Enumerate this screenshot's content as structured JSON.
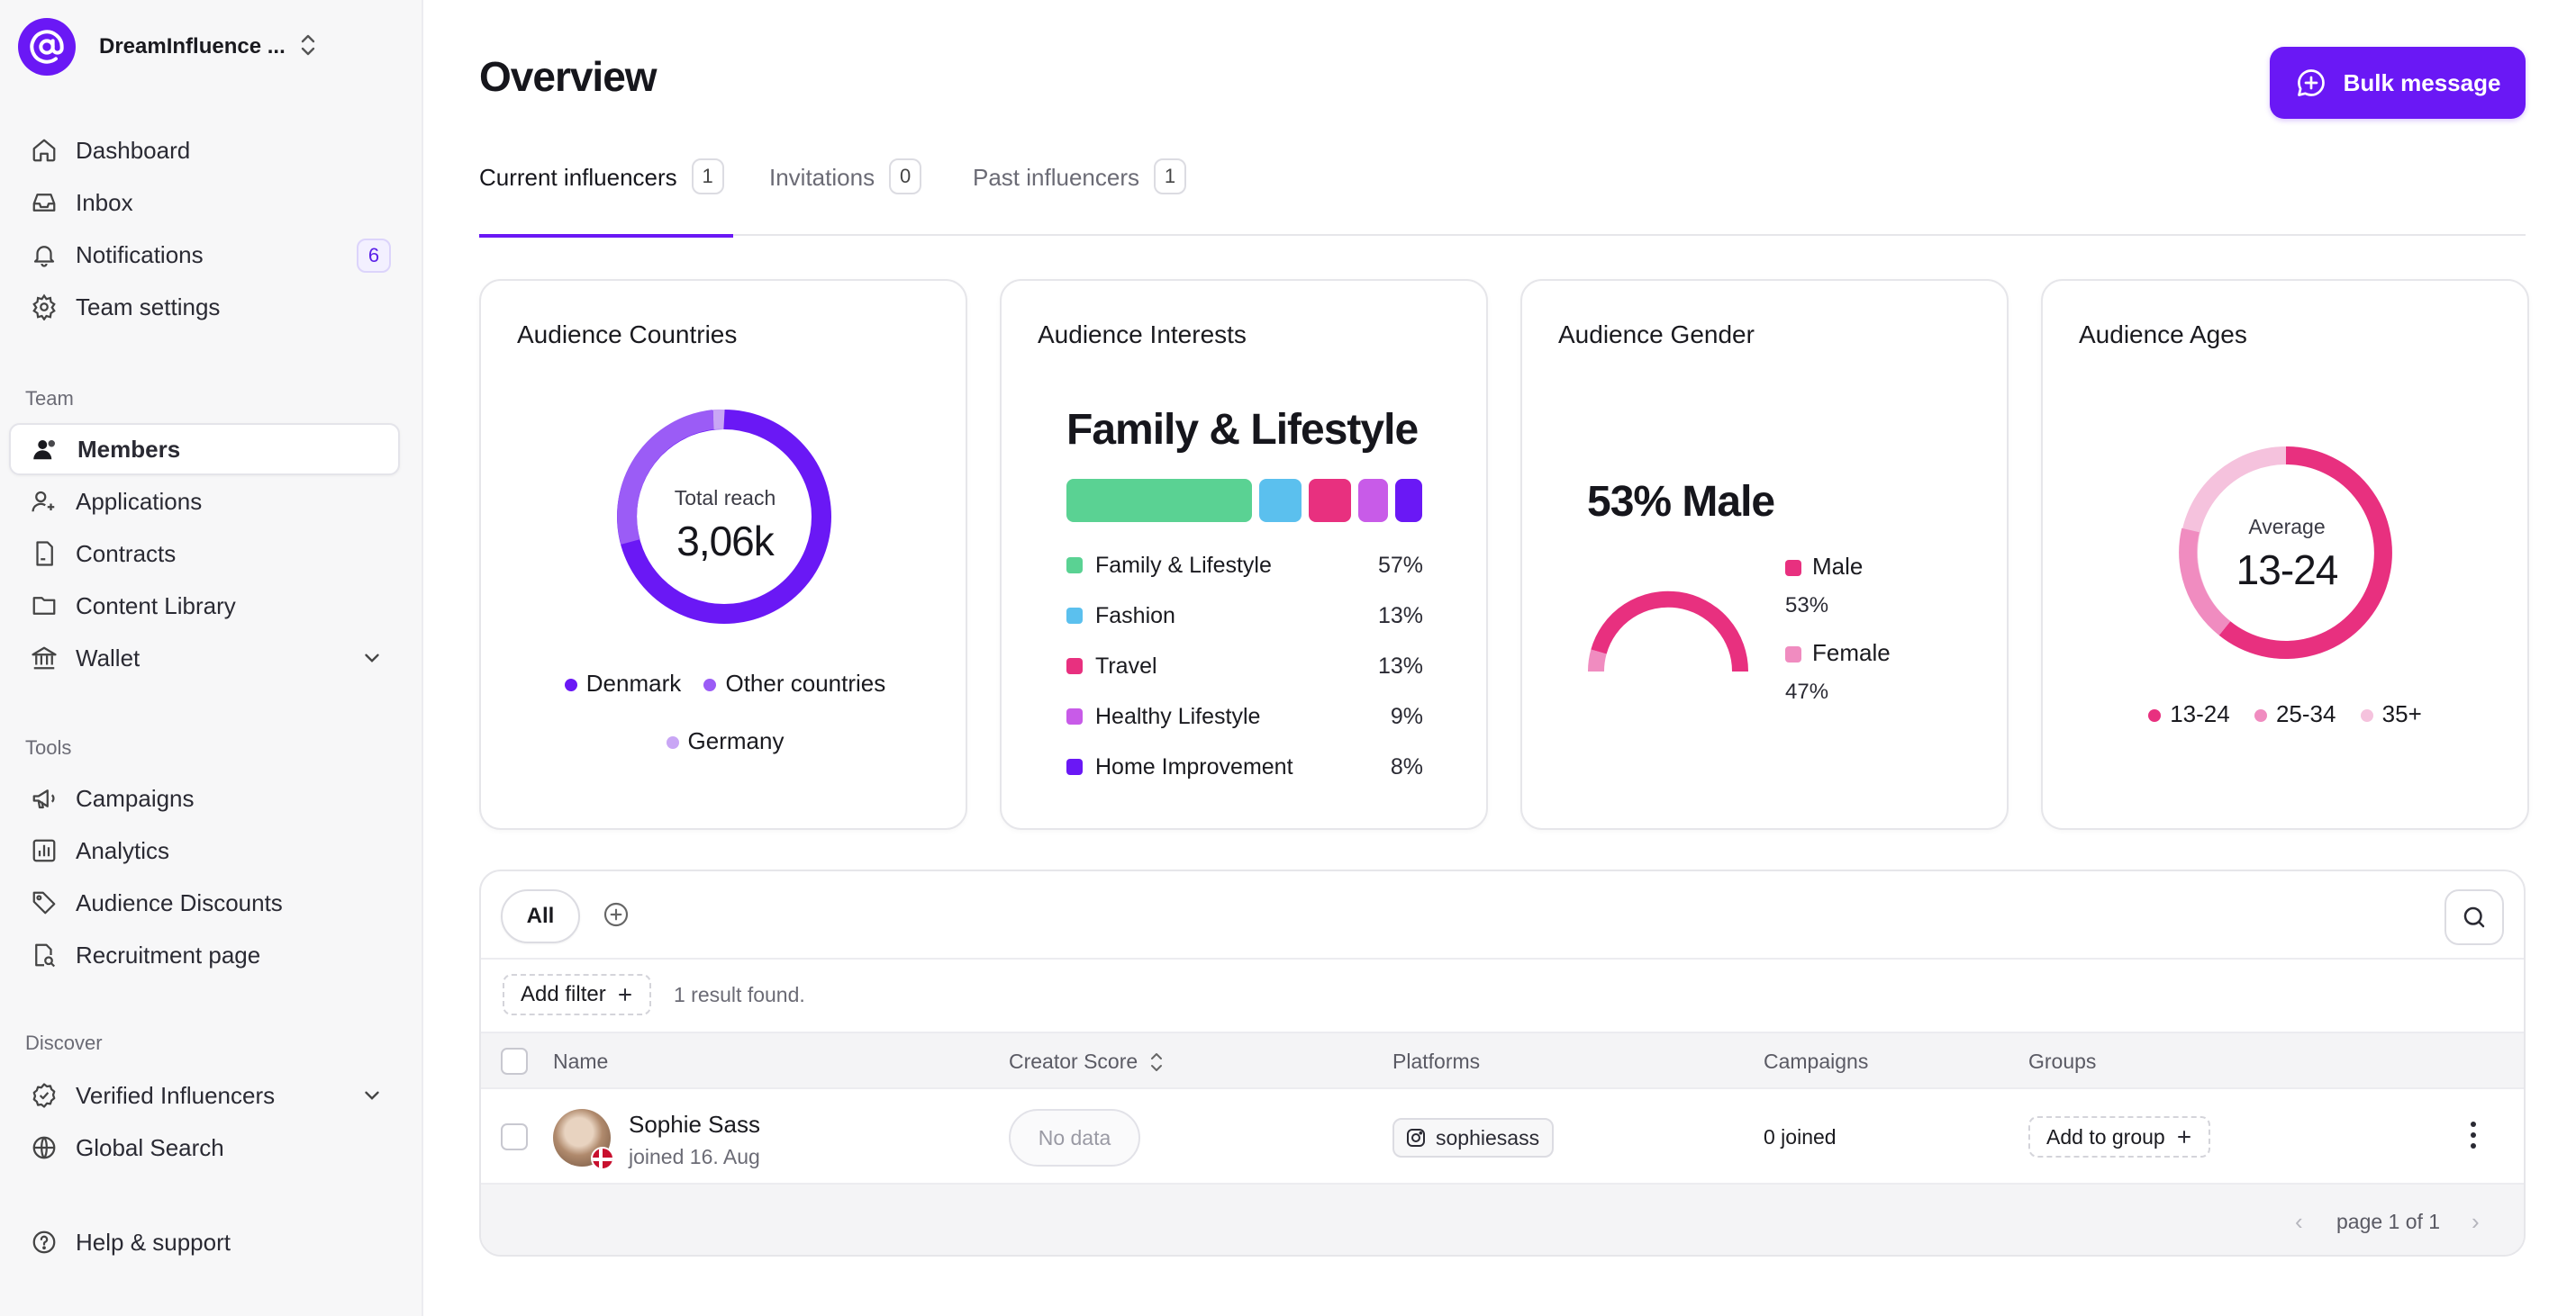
{
  "colors": {
    "accent": "#6a18f5",
    "green": "#5ad293",
    "blue": "#5bc0ee",
    "pink": "#e8307f",
    "light_pink": "#f08cc0",
    "lavender": "#c85be8",
    "pale_pink": "#f5c2dd"
  },
  "sidebar": {
    "workspace_name": "DreamInfluence ...",
    "workspace_logo": "at-sign-logo",
    "top_items": [
      {
        "label": "Dashboard",
        "icon": "home-icon"
      },
      {
        "label": "Inbox",
        "icon": "inbox-icon"
      },
      {
        "label": "Notifications",
        "icon": "bell-icon",
        "badge": "6"
      },
      {
        "label": "Team settings",
        "icon": "gear-icon"
      }
    ],
    "team_label": "Team",
    "team_items": [
      {
        "label": "Members",
        "icon": "users-icon",
        "active": true
      },
      {
        "label": "Applications",
        "icon": "user-plus-icon"
      },
      {
        "label": "Contracts",
        "icon": "document-icon"
      },
      {
        "label": "Content Library",
        "icon": "folder-icon"
      },
      {
        "label": "Wallet",
        "icon": "bank-icon"
      }
    ],
    "tools_label": "Tools",
    "tools_items": [
      {
        "label": "Campaigns",
        "icon": "megaphone-icon"
      },
      {
        "label": "Analytics",
        "icon": "bar-chart-icon"
      },
      {
        "label": "Audience Discounts",
        "icon": "tag-icon"
      },
      {
        "label": "Recruitment page",
        "icon": "search-document-icon"
      }
    ],
    "discover_label": "Discover",
    "discover_items": [
      {
        "label": "Verified Influencers",
        "icon": "verified-icon"
      },
      {
        "label": "Global Search",
        "icon": "globe-icon"
      }
    ],
    "help_label": "Help & support"
  },
  "header": {
    "title": "Overview",
    "bulk_message_label": "Bulk message"
  },
  "tabs": [
    {
      "label": "Current influencers",
      "count": "1",
      "active": true
    },
    {
      "label": "Invitations",
      "count": "0"
    },
    {
      "label": "Past influencers",
      "count": "1"
    }
  ],
  "cards": {
    "countries": {
      "title": "Audience Countries",
      "center_label": "Total reach",
      "center_value": "3,06k",
      "legend": [
        {
          "label": "Denmark",
          "color": "#6a18f5"
        },
        {
          "label": "Other countries",
          "color": "#9b5cf6"
        },
        {
          "label": "Germany",
          "color": "#c9a6f5"
        }
      ]
    },
    "interests": {
      "title": "Audience Interests",
      "headline": "Family & Lifestyle",
      "items": [
        {
          "label": "Family & Lifestyle",
          "pct": "57%",
          "color": "#5ad293"
        },
        {
          "label": "Fashion",
          "pct": "13%",
          "color": "#5bc0ee"
        },
        {
          "label": "Travel",
          "pct": "13%",
          "color": "#e8307f"
        },
        {
          "label": "Healthy Lifestyle",
          "pct": "9%",
          "color": "#c85be8"
        },
        {
          "label": "Home Improvement",
          "pct": "8%",
          "color": "#6a18f5"
        }
      ]
    },
    "gender": {
      "title": "Audience Gender",
      "headline": "53% Male",
      "items": [
        {
          "label": "Male",
          "pct": "53%",
          "color": "#e8307f"
        },
        {
          "label": "Female",
          "pct": "47%",
          "color": "#f08cc0"
        }
      ]
    },
    "ages": {
      "title": "Audience Ages",
      "center_label": "Average",
      "center_value": "13-24",
      "legend": [
        {
          "label": "13-24",
          "color": "#e8307f"
        },
        {
          "label": "25-34",
          "color": "#f08cc0"
        },
        {
          "label": "35+",
          "color": "#f5c2dd"
        }
      ]
    }
  },
  "table": {
    "filter_chip": "All",
    "add_filter_label": "Add filter",
    "result_text": "1 result found.",
    "columns": [
      "Name",
      "Creator Score",
      "Platforms",
      "Campaigns",
      "Groups"
    ],
    "rows": [
      {
        "name": "Sophie Sass",
        "joined": "joined 16. Aug",
        "creator_score": "No data",
        "platform_handle": "sophiesass",
        "platform_icon": "instagram-icon",
        "campaigns": "0 joined",
        "group_action": "Add to group"
      }
    ],
    "pagination": "page 1 of 1"
  }
}
